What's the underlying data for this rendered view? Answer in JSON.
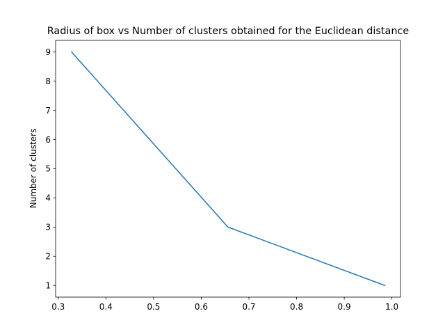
{
  "chart_data": {
    "type": "line",
    "title": "Radius of box vs Number of clusters obtained for the Euclidean distance",
    "xlabel": "",
    "ylabel": "Number of clusters",
    "xlim": [
      0.2945,
      1.018
    ],
    "ylim": [
      0.6,
      9.4
    ],
    "xticks": [
      0.3,
      0.4,
      0.5,
      0.6,
      0.7,
      0.8,
      0.9,
      1.0
    ],
    "xtick_labels": [
      "0.3",
      "0.4",
      "0.5",
      "0.6",
      "0.7",
      "0.8",
      "0.9",
      "1.0"
    ],
    "yticks": [
      1,
      2,
      3,
      4,
      5,
      6,
      7,
      8,
      9
    ],
    "ytick_labels": [
      "1",
      "2",
      "3",
      "4",
      "5",
      "6",
      "7",
      "8",
      "9"
    ],
    "grid": false,
    "series": [
      {
        "name": "clusters",
        "color": "#1f77b4",
        "x": [
          0.328,
          0.656,
          0.985
        ],
        "y": [
          9,
          3,
          1
        ]
      }
    ]
  }
}
